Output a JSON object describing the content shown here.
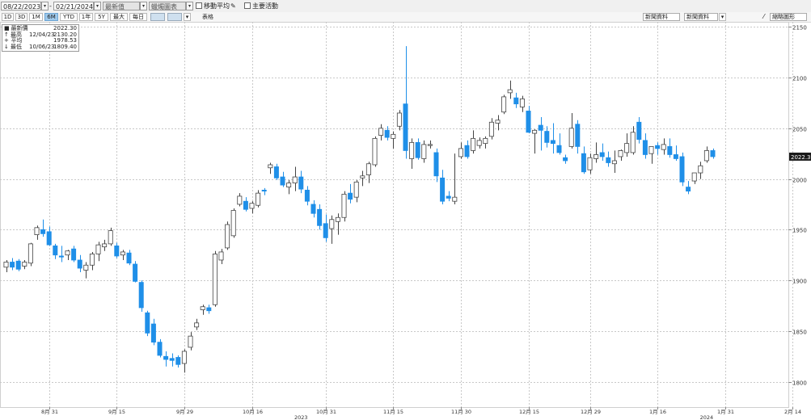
{
  "toolbar": {
    "start_date": "08/22/2023",
    "end_date": "02/21/2024",
    "sep": "-",
    "field_price": "最新值",
    "field_chart": "蠟燭圖表",
    "moving_average": "移動平均",
    "key_events": "主要活動"
  },
  "periods": [
    "1D",
    "3D",
    "1M",
    "6M",
    "YTD",
    "1年",
    "5Y",
    "最大",
    "每日"
  ],
  "active_period": "6M",
  "table_label": "表格",
  "right_buttons": {
    "news": "新聞資料",
    "events": "新聞資料",
    "zoom": "縮略圖形"
  },
  "legend": {
    "items": [
      {
        "symbol": "■",
        "name": "最新價",
        "date": "",
        "value": "2022.30"
      },
      {
        "symbol": "↑",
        "name": "最高",
        "date": "12/04/23",
        "value": "2130.20"
      },
      {
        "symbol": "+",
        "name": "平均",
        "date": "",
        "value": "1978.53"
      },
      {
        "symbol": "↓",
        "name": "最低",
        "date": "10/06/23",
        "value": "1809.40"
      }
    ]
  },
  "colors": {
    "up": "#ffffff",
    "up_stroke": "#444444",
    "down": "#1f8fe8",
    "last_label_bg": "#1a1a1a"
  },
  "chart_data": {
    "type": "candlestick",
    "ylim": [
      1775,
      2155
    ],
    "yticks": [
      1800,
      1850,
      1900,
      1950,
      2000,
      2050,
      2100,
      2150
    ],
    "grid": true,
    "last_value_label": "2022.30",
    "xticks": [
      {
        "label": "8月 31",
        "i": 7
      },
      {
        "label": "9月 15",
        "i": 18
      },
      {
        "label": "9月 29",
        "i": 29
      },
      {
        "label": "10月 16",
        "i": 40
      },
      {
        "label": "10月 31",
        "i": 52
      },
      {
        "label": "11月 15",
        "i": 63
      },
      {
        "label": "11月 30",
        "i": 74
      },
      {
        "label": "12月 15",
        "i": 85
      },
      {
        "label": "12月 29",
        "i": 95
      },
      {
        "label": "1月 16",
        "i": 106
      },
      {
        "label": "1月 31",
        "i": 117
      },
      {
        "label": "2月 14",
        "i": 128
      }
    ],
    "years": [
      {
        "label": "2023",
        "i": 48
      },
      {
        "label": "2024",
        "i": 114
      }
    ],
    "ohlc": [
      [
        1913,
        1920,
        1908,
        1918
      ],
      [
        1918,
        1922,
        1910,
        1913
      ],
      [
        1919,
        1921,
        1909,
        1911
      ],
      [
        1914,
        1920,
        1911,
        1918
      ],
      [
        1917,
        1937,
        1914,
        1936
      ],
      [
        1945,
        1954,
        1940,
        1952
      ],
      [
        1950,
        1960,
        1943,
        1946
      ],
      [
        1948,
        1953,
        1934,
        1935
      ],
      [
        1934,
        1936,
        1921,
        1925
      ],
      [
        1924,
        1934,
        1918,
        1923
      ],
      [
        1925,
        1930,
        1920,
        1929
      ],
      [
        1931,
        1934,
        1918,
        1920
      ],
      [
        1920,
        1925,
        1908,
        1912
      ],
      [
        1910,
        1918,
        1902,
        1915
      ],
      [
        1915,
        1928,
        1910,
        1926
      ],
      [
        1926,
        1938,
        1919,
        1935
      ],
      [
        1933,
        1940,
        1929,
        1936
      ],
      [
        1936,
        1952,
        1934,
        1949
      ],
      [
        1934,
        1937,
        1922,
        1924
      ],
      [
        1925,
        1930,
        1920,
        1928
      ],
      [
        1927,
        1930,
        1915,
        1917
      ],
      [
        1916,
        1919,
        1898,
        1899
      ],
      [
        1898,
        1900,
        1869,
        1873
      ],
      [
        1868,
        1870,
        1845,
        1848
      ],
      [
        1857,
        1862,
        1836,
        1839
      ],
      [
        1839,
        1842,
        1824,
        1826
      ],
      [
        1825,
        1830,
        1815,
        1822
      ],
      [
        1823,
        1828,
        1815,
        1821
      ],
      [
        1824,
        1826,
        1814,
        1817
      ],
      [
        1818,
        1832,
        1809,
        1830
      ],
      [
        1834,
        1849,
        1831,
        1845
      ],
      [
        1854,
        1862,
        1851,
        1858
      ],
      [
        1871,
        1876,
        1866,
        1874
      ],
      [
        1873,
        1876,
        1867,
        1870
      ],
      [
        1876,
        1929,
        1874,
        1926
      ],
      [
        1920,
        1931,
        1916,
        1928
      ],
      [
        1932,
        1958,
        1930,
        1955
      ],
      [
        1944,
        1971,
        1942,
        1969
      ],
      [
        1975,
        1986,
        1973,
        1983
      ],
      [
        1978,
        1982,
        1968,
        1970
      ],
      [
        1971,
        1978,
        1966,
        1976
      ],
      [
        1974,
        1989,
        1972,
        1986
      ],
      [
        1989,
        1991,
        1984,
        1988
      ],
      [
        2011,
        2016,
        2005,
        2014
      ],
      [
        2012,
        2015,
        1999,
        2001
      ],
      [
        2002,
        2007,
        1992,
        1994
      ],
      [
        1992,
        1999,
        1985,
        1996
      ],
      [
        1996,
        2012,
        1988,
        2002
      ],
      [
        2002,
        2008,
        1986,
        1990
      ],
      [
        1989,
        1993,
        1974,
        1978
      ],
      [
        1975,
        1979,
        1962,
        1966
      ],
      [
        1970,
        1975,
        1950,
        1954
      ],
      [
        1956,
        1965,
        1938,
        1942
      ],
      [
        1951,
        1964,
        1936,
        1960
      ],
      [
        1958,
        1966,
        1945,
        1962
      ],
      [
        1962,
        1988,
        1958,
        1985
      ],
      [
        1986,
        1995,
        1976,
        1980
      ],
      [
        1982,
        1999,
        1977,
        1997
      ],
      [
        2001,
        2008,
        1993,
        2003
      ],
      [
        2004,
        2017,
        1996,
        2015
      ],
      [
        2014,
        2042,
        2012,
        2040
      ],
      [
        2043,
        2054,
        2038,
        2050
      ],
      [
        2048,
        2052,
        2038,
        2041
      ],
      [
        2040,
        2047,
        2030,
        2044
      ],
      [
        2052,
        2068,
        2048,
        2065
      ],
      [
        2074,
        2131,
        2020,
        2028
      ],
      [
        2020,
        2040,
        2010,
        2036
      ],
      [
        2036,
        2040,
        2019,
        2021
      ],
      [
        2020,
        2038,
        2016,
        2034
      ],
      [
        2033,
        2038,
        2030,
        2034
      ],
      [
        2026,
        2030,
        1997,
        2003
      ],
      [
        2001,
        2009,
        1975,
        1978
      ],
      [
        1983,
        1988,
        1978,
        1981
      ],
      [
        1978,
        2025,
        1975,
        1982
      ],
      [
        2022,
        2036,
        2020,
        2030
      ],
      [
        2033,
        2038,
        2020,
        2022
      ],
      [
        2028,
        2048,
        2025,
        2040
      ],
      [
        2033,
        2041,
        2030,
        2038
      ],
      [
        2035,
        2042,
        2030,
        2040
      ],
      [
        2042,
        2060,
        2039,
        2056
      ],
      [
        2055,
        2063,
        2048,
        2058
      ],
      [
        2066,
        2083,
        2064,
        2081
      ],
      [
        2085,
        2097,
        2079,
        2088
      ],
      [
        2080,
        2085,
        2070,
        2074
      ],
      [
        2071,
        2082,
        2066,
        2079
      ],
      [
        2067,
        2072,
        2045,
        2046
      ],
      [
        2045,
        2049,
        2025,
        2048
      ],
      [
        2053,
        2061,
        2028,
        2048
      ],
      [
        2047,
        2052,
        2031,
        2036
      ],
      [
        2038,
        2055,
        2025,
        2035
      ],
      [
        2033,
        2045,
        2024,
        2026
      ],
      [
        2021,
        2024,
        2015,
        2018
      ],
      [
        2032,
        2065,
        2030,
        2050
      ],
      [
        2054,
        2058,
        2025,
        2032
      ],
      [
        2025,
        2032,
        2005,
        2007
      ],
      [
        2009,
        2025,
        2005,
        2021
      ],
      [
        2020,
        2036,
        2016,
        2024
      ],
      [
        2026,
        2035,
        2018,
        2022
      ],
      [
        2021,
        2027,
        2012,
        2016
      ],
      [
        2015,
        2028,
        2006,
        2018
      ],
      [
        2022,
        2029,
        2018,
        2028
      ],
      [
        2026,
        2045,
        2022,
        2035
      ],
      [
        2026,
        2052,
        2024,
        2046
      ],
      [
        2056,
        2061,
        2035,
        2039
      ],
      [
        2038,
        2045,
        2020,
        2024
      ],
      [
        2025,
        2030,
        2015,
        2032
      ],
      [
        2033,
        2036,
        2024,
        2030
      ],
      [
        2029,
        2040,
        2024,
        2034
      ],
      [
        2032,
        2040,
        2021,
        2024
      ],
      [
        2024,
        2033,
        2018,
        2020
      ],
      [
        2022,
        2026,
        1993,
        1997
      ],
      [
        1992,
        1998,
        1985,
        1988
      ],
      [
        1998,
        2003,
        1995,
        2006
      ],
      [
        2006,
        2017,
        2000,
        2013
      ],
      [
        2018,
        2032,
        2016,
        2028
      ],
      [
        2028,
        2030,
        2020,
        2022
      ]
    ]
  }
}
